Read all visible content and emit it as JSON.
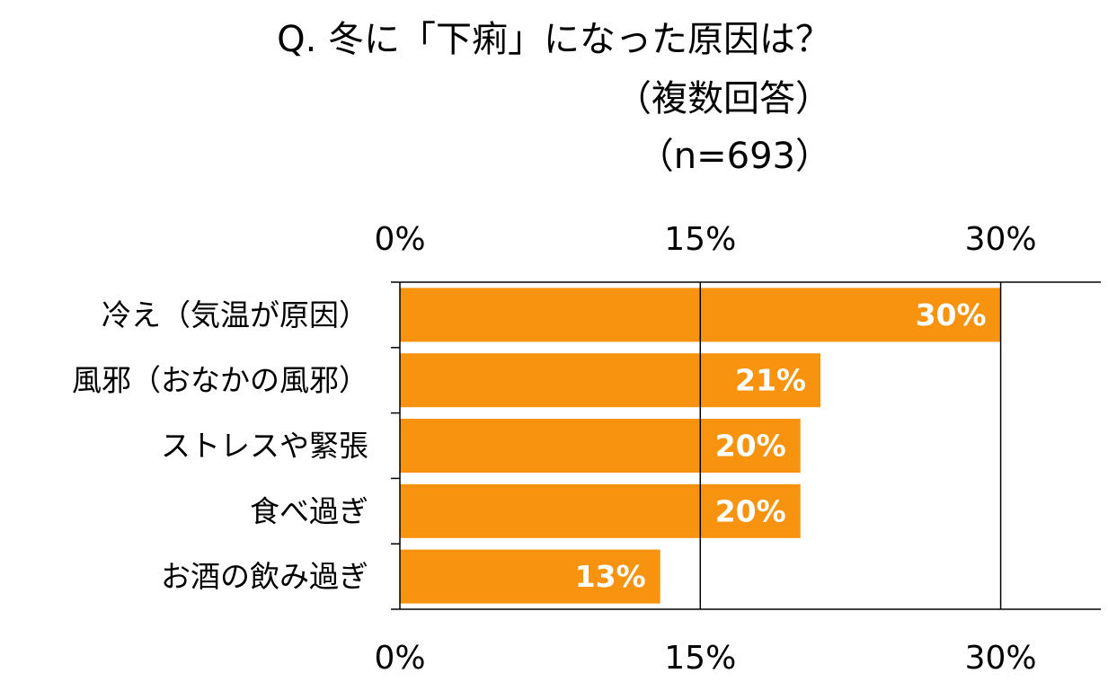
{
  "header": {
    "title_line1": "Q. 冬に「下痢」になった原因は？",
    "title_line2": "（複数回答）",
    "title_line3": "（n=693）"
  },
  "colors": {
    "bar": "#F7930F",
    "axis": "#000000"
  },
  "chart_data": {
    "type": "bar",
    "orientation": "horizontal",
    "categories": [
      "冷え（気温が原因）",
      "風邪（おなかの風邪）",
      "ストレスや緊張",
      "食べ過ぎ",
      "お酒の飲み過ぎ"
    ],
    "values": [
      30,
      21,
      20,
      20,
      13
    ],
    "value_labels": [
      "30%",
      "21%",
      "20%",
      "20%",
      "13%"
    ],
    "xlim": [
      0,
      35
    ],
    "xticks": [
      0,
      15,
      30
    ],
    "xtick_labels": [
      "0%",
      "15%",
      "30%"
    ],
    "xtick_label_positions": [
      "top",
      "bottom"
    ],
    "grid": true,
    "legend": "none"
  }
}
